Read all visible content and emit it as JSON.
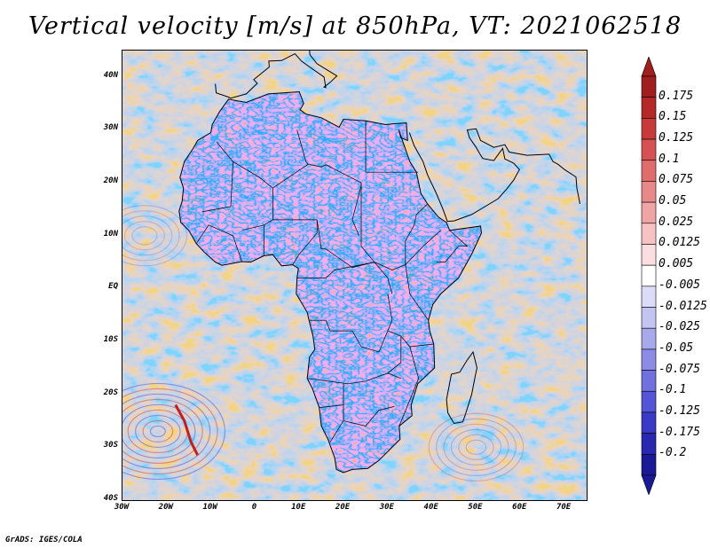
{
  "title": "Vertical velocity [m/s] at 850hPa, VT: 2021062518",
  "credit": "GrADS: IGES/COLA",
  "map": {
    "variable": "Vertical velocity",
    "units": "m/s",
    "level": "850hPa",
    "valid_time": "2021062518",
    "lon_range": [
      -30,
      75
    ],
    "lat_range": [
      -40,
      45
    ],
    "lon_labels": [
      "30W",
      "20W",
      "10W",
      "0",
      "10E",
      "20E",
      "30E",
      "40E",
      "50E",
      "60E",
      "70E"
    ],
    "lat_labels": [
      "40N",
      "30N",
      "20N",
      "10N",
      "EQ",
      "10S",
      "20S",
      "30S",
      "40S"
    ]
  },
  "colorbar": {
    "labels": [
      "0.175",
      "0.15",
      "0.125",
      "0.1",
      "0.075",
      "0.05",
      "0.025",
      "0.0125",
      "0.005",
      "-0.005",
      "-0.0125",
      "-0.025",
      "-0.05",
      "-0.075",
      "-0.1",
      "-0.125",
      "-0.175",
      "-0.2"
    ],
    "colors": [
      "#a01e1e",
      "#b42828",
      "#c83a3a",
      "#d65252",
      "#e06c6c",
      "#e88888",
      "#f0a4a4",
      "#f6c2c2",
      "#fbdede",
      "#ffffff",
      "#dcdcf8",
      "#c4c4f2",
      "#a8a8ec",
      "#8c8ce6",
      "#7070de",
      "#5454d6",
      "#3a3ac6",
      "#2828b0",
      "#1a1a96"
    ],
    "arrow_top_color": "#a01e1e",
    "arrow_bottom_color": "#1a1a96"
  }
}
